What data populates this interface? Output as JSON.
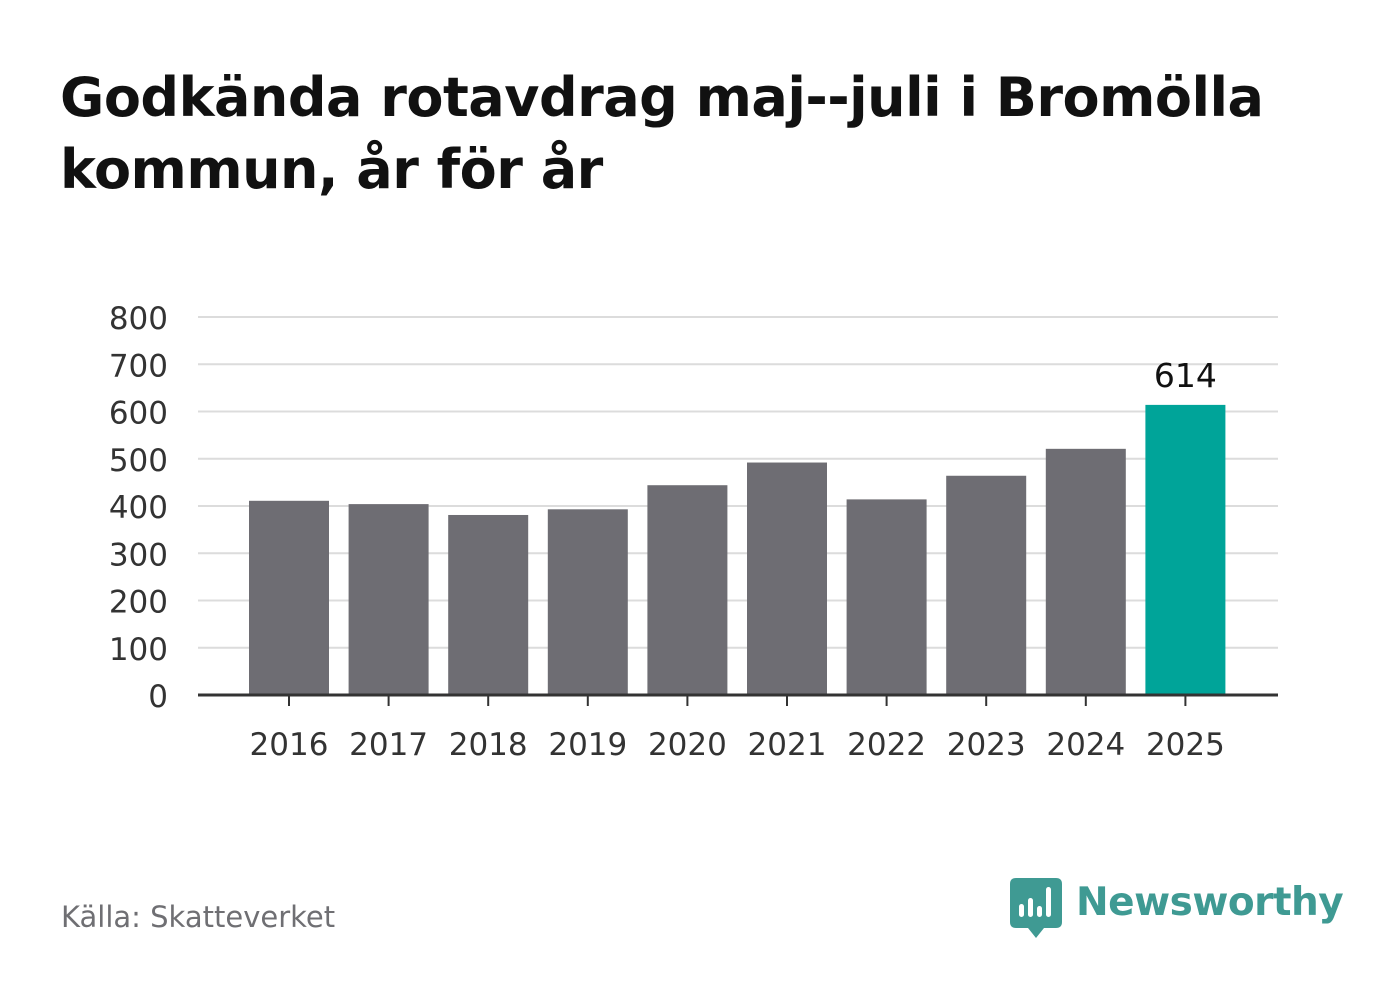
{
  "title": "Godkända rotavdrag maj--juli i Bromölla kommun, år för år",
  "source": "Källa: Skatteverket",
  "brand": {
    "name": "Newsworthy",
    "icon": "newsworthy-logo-icon",
    "color": "#3f9a93"
  },
  "chart_data": {
    "type": "bar",
    "title": "Godkända rotavdrag maj--juli i Bromölla kommun, år för år",
    "xlabel": "",
    "ylabel": "",
    "categories": [
      "2016",
      "2017",
      "2018",
      "2019",
      "2020",
      "2021",
      "2022",
      "2023",
      "2024",
      "2025"
    ],
    "values": [
      411,
      404,
      381,
      393,
      444,
      492,
      414,
      464,
      521,
      614
    ],
    "ylim": [
      0,
      800
    ],
    "yticks": [
      "0",
      "100",
      "200",
      "300",
      "400",
      "500",
      "600",
      "700",
      "800"
    ],
    "grid": true,
    "colors": {
      "bar": "#6e6d73",
      "highlight": "#00a499",
      "grid": "#dcdcdc",
      "axis": "#333333",
      "text": "#333333"
    },
    "highlight_index": 9,
    "data_labels": [
      {
        "category": "2025",
        "text": "614"
      }
    ]
  }
}
